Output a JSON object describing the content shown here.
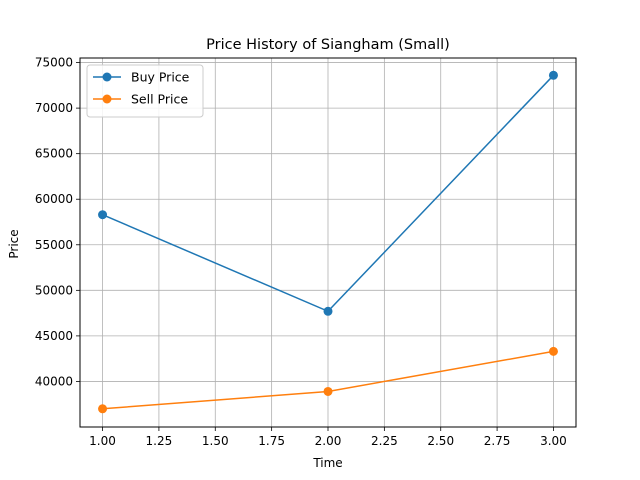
{
  "chart_data": {
    "type": "line",
    "title": "Price History of Siangham (Small)",
    "xlabel": "Time",
    "ylabel": "Price",
    "x": [
      1.0,
      2.0,
      3.0
    ],
    "xlim": [
      0.9,
      3.1
    ],
    "ylim": [
      35000,
      75500
    ],
    "xticks": [
      1.0,
      1.25,
      1.5,
      1.75,
      2.0,
      2.25,
      2.5,
      2.75,
      3.0
    ],
    "xtick_labels": [
      "1.00",
      "1.25",
      "1.50",
      "1.75",
      "2.00",
      "2.25",
      "2.50",
      "2.75",
      "3.00"
    ],
    "yticks": [
      40000,
      45000,
      50000,
      55000,
      60000,
      65000,
      70000,
      75000
    ],
    "ytick_labels": [
      "40000",
      "45000",
      "50000",
      "55000",
      "60000",
      "65000",
      "70000",
      "75000"
    ],
    "grid": true,
    "legend_position": "top-left",
    "series": [
      {
        "name": "Buy Price",
        "color": "#1f77b4",
        "marker": "circle",
        "values": [
          58300,
          47700,
          73600
        ]
      },
      {
        "name": "Sell Price",
        "color": "#ff7f0e",
        "marker": "circle",
        "values": [
          37000,
          38900,
          43300
        ]
      }
    ]
  }
}
